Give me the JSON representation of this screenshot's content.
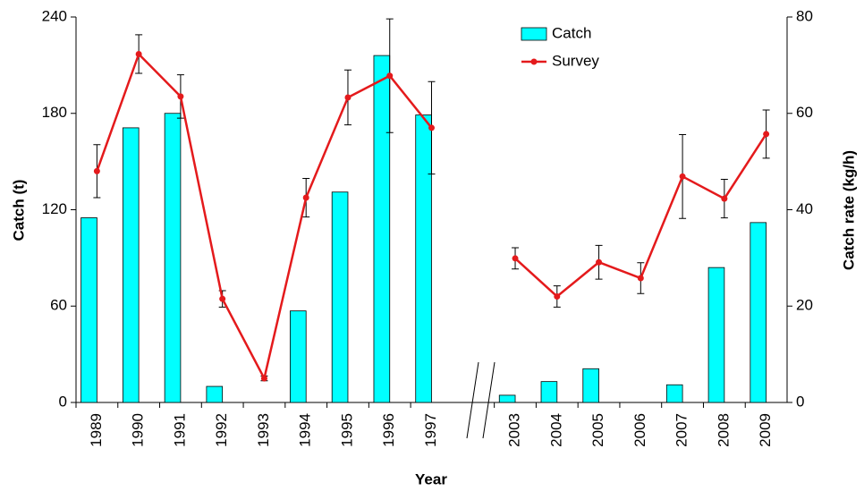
{
  "chart_data": {
    "type": "bar_line",
    "x_label": "Year",
    "y_label": "Catch (t)",
    "y2_label": "Catch rate (kg/h)",
    "categories": [
      "1989",
      "1990",
      "1991",
      "1992",
      "1993",
      "1994",
      "1995",
      "1996",
      "1997",
      null,
      "2003",
      "2004",
      "2005",
      "2006",
      "2007",
      "2008",
      "2009"
    ],
    "series": [
      {
        "name": "Catch",
        "type": "bar",
        "color": "#00ffff",
        "values": [
          115,
          171,
          180,
          10,
          0,
          57,
          131,
          216,
          179,
          null,
          4.5,
          13,
          21,
          0,
          11,
          84,
          112
        ]
      },
      {
        "name": "Survey",
        "type": "line",
        "axis": "y2",
        "color": "#e41a1c",
        "values": [
          48,
          72.3,
          63.5,
          21.5,
          5,
          42.5,
          63.3,
          67.8,
          57,
          null,
          29.9,
          22,
          29.1,
          25.8,
          46.9,
          42.3,
          55.7
        ],
        "errors": [
          5.5,
          4,
          4.5,
          1.7,
          0.5,
          4,
          5.7,
          11.8,
          9.6,
          null,
          2.2,
          2.2,
          3.5,
          3.2,
          8.7,
          4,
          5
        ]
      }
    ],
    "ylim": [
      0,
      240
    ],
    "yticks": [
      0,
      60,
      120,
      180,
      240
    ],
    "y2lim": [
      0,
      80
    ],
    "y2ticks": [
      0,
      20,
      40,
      60,
      80
    ],
    "legend": "top-center"
  }
}
